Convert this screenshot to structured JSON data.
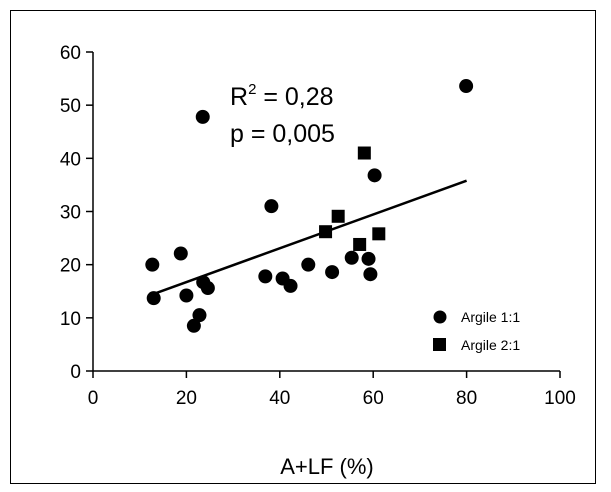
{
  "chart_data": {
    "type": "scatter",
    "title": "",
    "xlabel": "A+LF (%)",
    "ylabel": "",
    "xlim": [
      0,
      100
    ],
    "ylim": [
      0,
      60
    ],
    "xticks": [
      0,
      20,
      40,
      60,
      80,
      100
    ],
    "yticks": [
      0,
      10,
      20,
      30,
      40,
      50,
      60
    ],
    "grid": false,
    "legend_position": "bottom-right",
    "annotations": {
      "r2_prefix": "R",
      "r2_exp": "2",
      "r2_value": " = 0,28",
      "p_text": "p = 0,005"
    },
    "trendline": {
      "x": [
        13,
        80
      ],
      "y": [
        14.5,
        35.8
      ]
    },
    "series": [
      {
        "name": "Argile 1:1",
        "marker": "circle",
        "points": [
          {
            "x": 12.7,
            "y": 20.0
          },
          {
            "x": 13.0,
            "y": 13.7
          },
          {
            "x": 18.8,
            "y": 22.1
          },
          {
            "x": 20.0,
            "y": 14.2
          },
          {
            "x": 21.6,
            "y": 8.5
          },
          {
            "x": 22.8,
            "y": 10.5
          },
          {
            "x": 23.5,
            "y": 47.8
          },
          {
            "x": 23.6,
            "y": 16.7
          },
          {
            "x": 24.6,
            "y": 15.6
          },
          {
            "x": 36.9,
            "y": 17.8
          },
          {
            "x": 38.2,
            "y": 31.0
          },
          {
            "x": 40.6,
            "y": 17.4
          },
          {
            "x": 42.3,
            "y": 16.0
          },
          {
            "x": 46.1,
            "y": 20.0
          },
          {
            "x": 51.2,
            "y": 18.6
          },
          {
            "x": 55.4,
            "y": 21.3
          },
          {
            "x": 59.0,
            "y": 21.1
          },
          {
            "x": 59.4,
            "y": 18.2
          },
          {
            "x": 60.3,
            "y": 36.8
          },
          {
            "x": 79.9,
            "y": 53.6
          }
        ]
      },
      {
        "name": "Argile 2:1",
        "marker": "square",
        "points": [
          {
            "x": 49.8,
            "y": 26.2
          },
          {
            "x": 52.5,
            "y": 29.1
          },
          {
            "x": 57.1,
            "y": 23.8
          },
          {
            "x": 58.1,
            "y": 41.0
          },
          {
            "x": 61.2,
            "y": 25.8
          }
        ]
      }
    ]
  }
}
